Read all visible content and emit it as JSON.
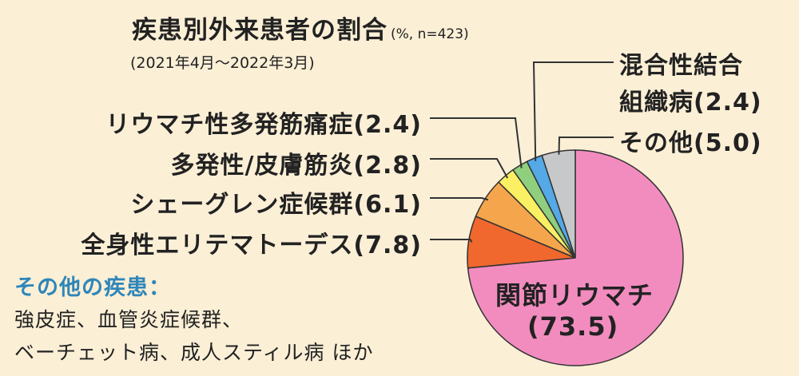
{
  "chart_data": {
    "type": "pie",
    "title": "疾患別外来患者の割合",
    "title_note": "(%, n=423)",
    "subtitle": "(2021年4月～2022年3月)",
    "slices": [
      {
        "label": "関節リウマチ",
        "value": 73.5,
        "value_text": "(73.5)",
        "color": "#f28cbf"
      },
      {
        "label": "全身性エリテマトーデス",
        "value": 7.8,
        "value_text": "(7.8)",
        "color": "#f0682e"
      },
      {
        "label": "シェーグレン症候群",
        "value": 6.1,
        "value_text": "(6.1)",
        "color": "#f5a64c"
      },
      {
        "label": "多発性/皮膚筋炎",
        "value": 2.8,
        "value_text": "(2.8)",
        "color": "#fbf063"
      },
      {
        "label": "リウマチ性多発筋痛症",
        "value": 2.4,
        "value_text": "(2.4)",
        "color": "#8fcf7e"
      },
      {
        "label": "混合性結合組織病",
        "label_lines": [
          "混合性結合",
          "組織病(2.4)"
        ],
        "value": 2.4,
        "value_text": "(2.4)",
        "color": "#54a9e6"
      },
      {
        "label": "その他",
        "value": 5.0,
        "value_text": "(5.0)",
        "color": "#c6c8c9"
      }
    ]
  },
  "labels": {
    "ra": {
      "name": "関節リウマチ",
      "value": "(73.5)"
    },
    "sle": "全身性エリテマトーデス(7.8)",
    "sjogren": "シェーグレン症候群(6.1)",
    "pm_dm": "多発性/皮膚筋炎(2.8)",
    "pmr": "リウマチ性多発筋痛症(2.4)",
    "mctd_line1": "混合性結合",
    "mctd_line2": "組織病(2.4)",
    "other": "その他(5.0)"
  },
  "other_diseases": {
    "heading": "その他の疾患：",
    "lines": [
      "強皮症、血管炎症候群、",
      "ベーチェット病、成人スティル病 ほか"
    ]
  }
}
